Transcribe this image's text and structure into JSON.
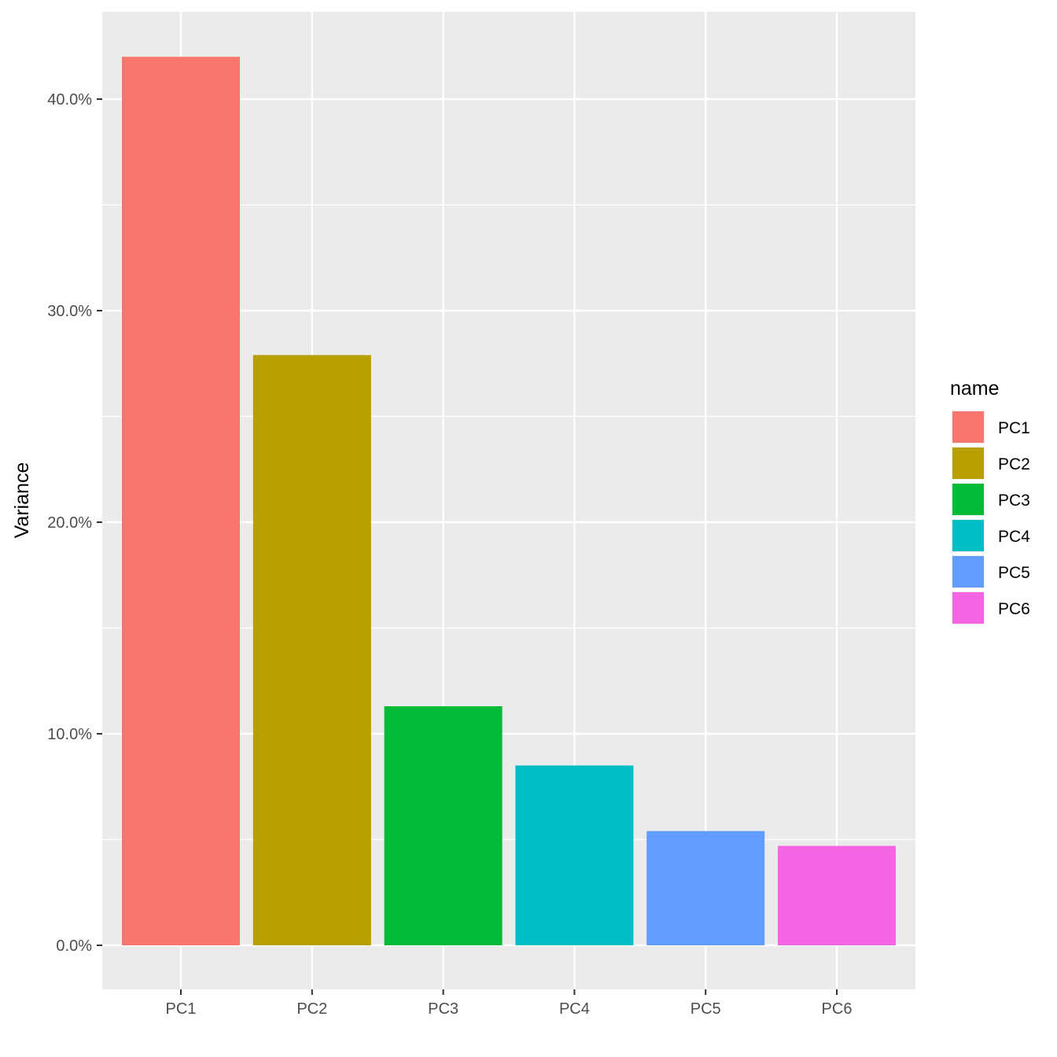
{
  "chart_data": {
    "type": "bar",
    "categories": [
      "PC1",
      "PC2",
      "PC3",
      "PC4",
      "PC5",
      "PC6"
    ],
    "values": [
      42.0,
      27.9,
      11.3,
      8.5,
      5.4,
      4.7
    ],
    "colors": [
      "#F8766D",
      "#B79F00",
      "#00BA38",
      "#00BFC4",
      "#619CFF",
      "#F564E3"
    ],
    "xlabel": "",
    "ylabel": "Variance",
    "ylim": [
      -2.1,
      44.1
    ],
    "yticks": [
      0,
      10,
      20,
      30,
      40
    ],
    "ytick_labels": [
      "0.0%",
      "10.0%",
      "20.0%",
      "30.0%",
      "40.0%"
    ],
    "grid": true,
    "legend": {
      "title": "name",
      "placement": "right",
      "entries": [
        "PC1",
        "PC2",
        "PC3",
        "PC4",
        "PC5",
        "PC6"
      ]
    }
  }
}
